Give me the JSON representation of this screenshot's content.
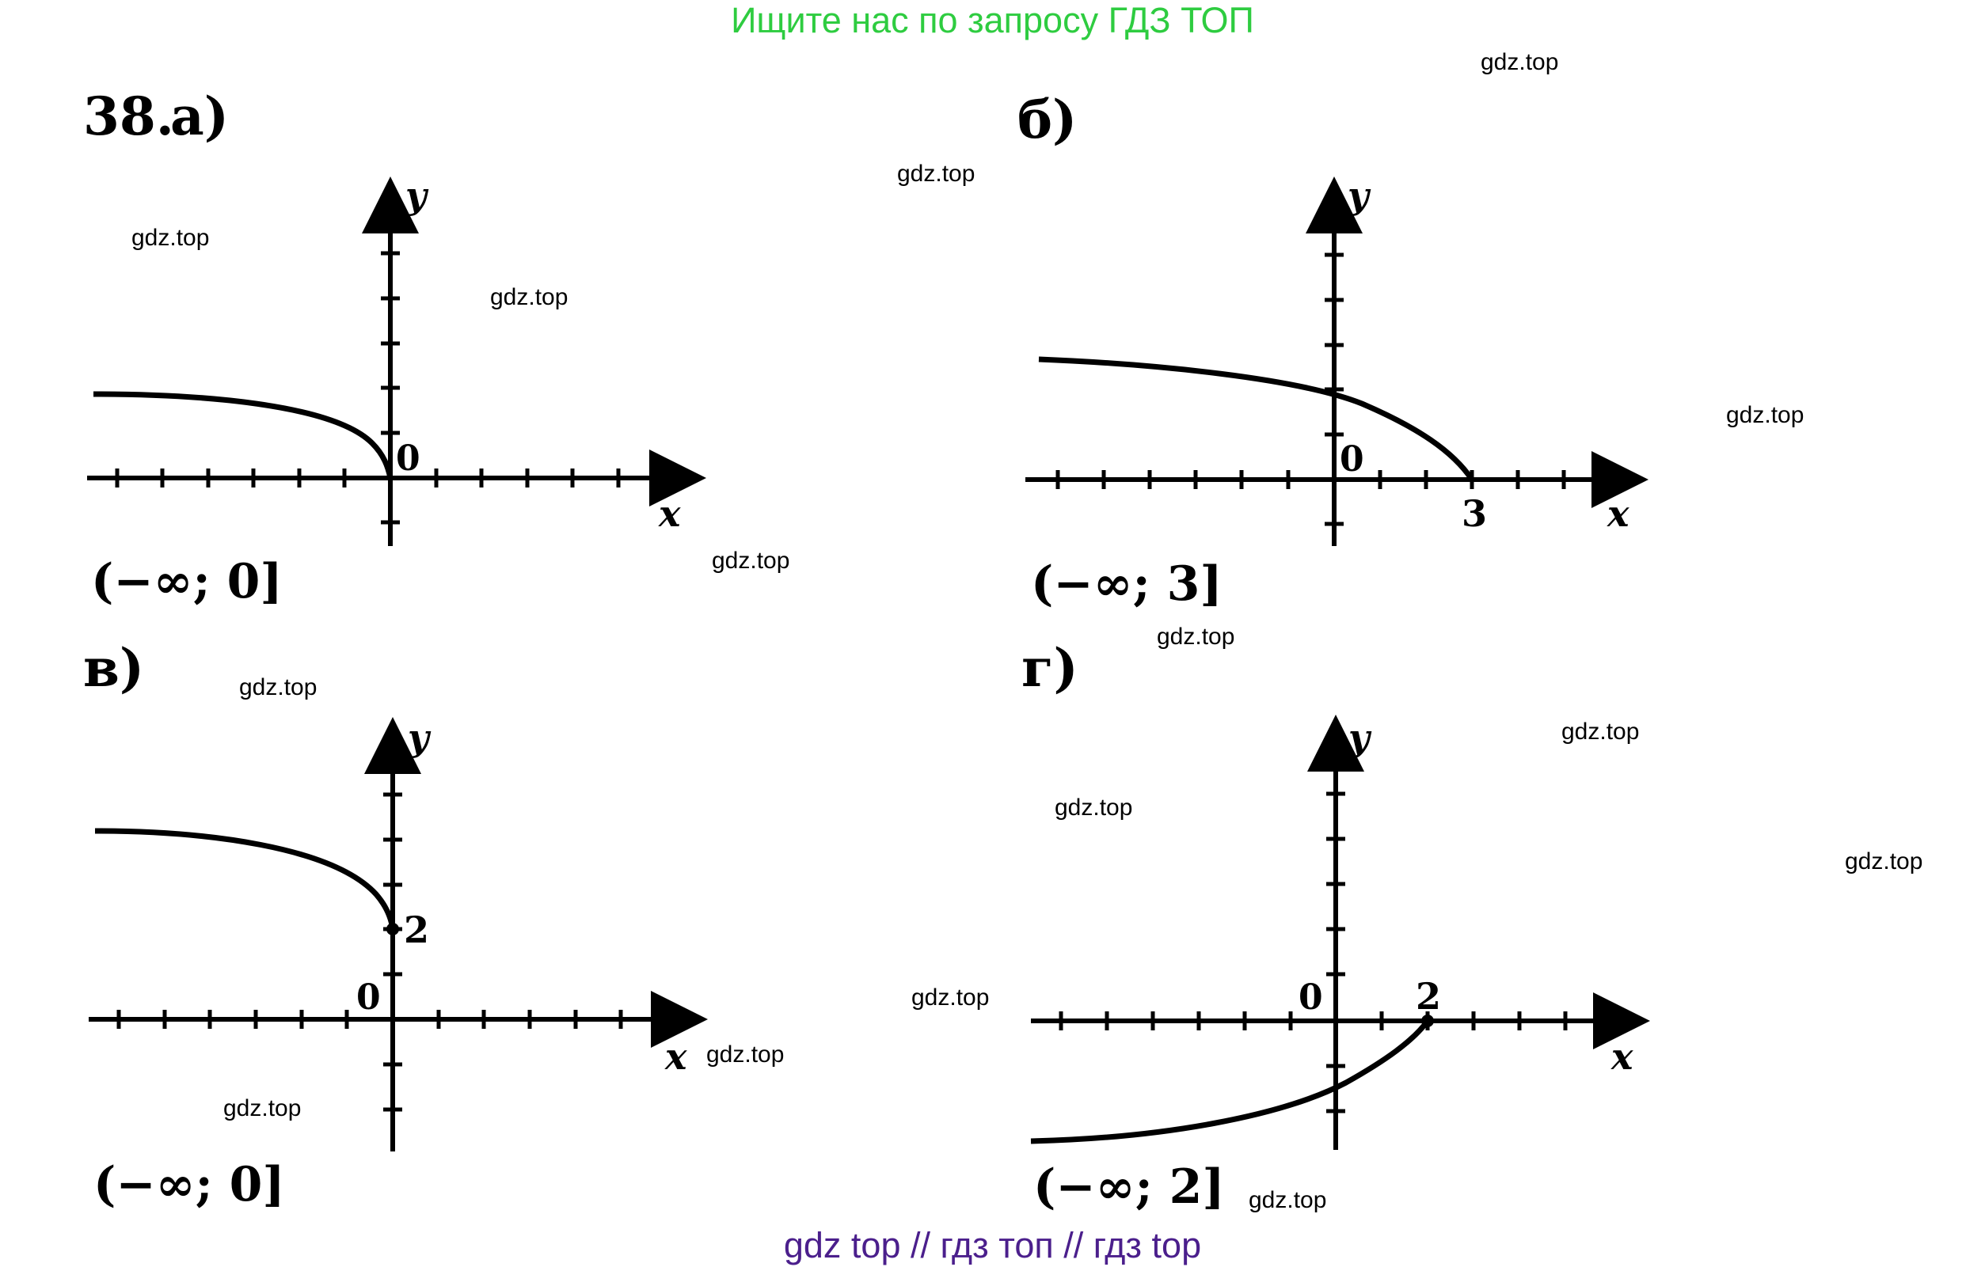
{
  "banner_top": {
    "text": "Ищите нас по запросу ГДЗ ТОП",
    "color": "#2ecc40"
  },
  "banner_bottom": {
    "text": "gdz top  //  гдз топ  //  гдз top",
    "color": "#4b1f8c"
  },
  "problem_number": "38.",
  "watermark": "gdz.top",
  "panels": [
    {
      "label": "а)",
      "answer": "(−∞; 0]",
      "origin_label": "0",
      "axis_x": "x",
      "axis_y": "y"
    },
    {
      "label": "б)",
      "answer": "(−∞; 3]",
      "origin_label": "0",
      "axis_x": "x",
      "axis_y": "y",
      "marked_x": "3"
    },
    {
      "label": "в)",
      "answer": "(−∞; 0]",
      "origin_label": "0",
      "axis_x": "x",
      "axis_y": "y",
      "marked_y": "2"
    },
    {
      "label": "г)",
      "answer": "(−∞; 2]",
      "origin_label": "0",
      "axis_x": "x",
      "axis_y": "y",
      "marked_x": "2"
    }
  ]
}
